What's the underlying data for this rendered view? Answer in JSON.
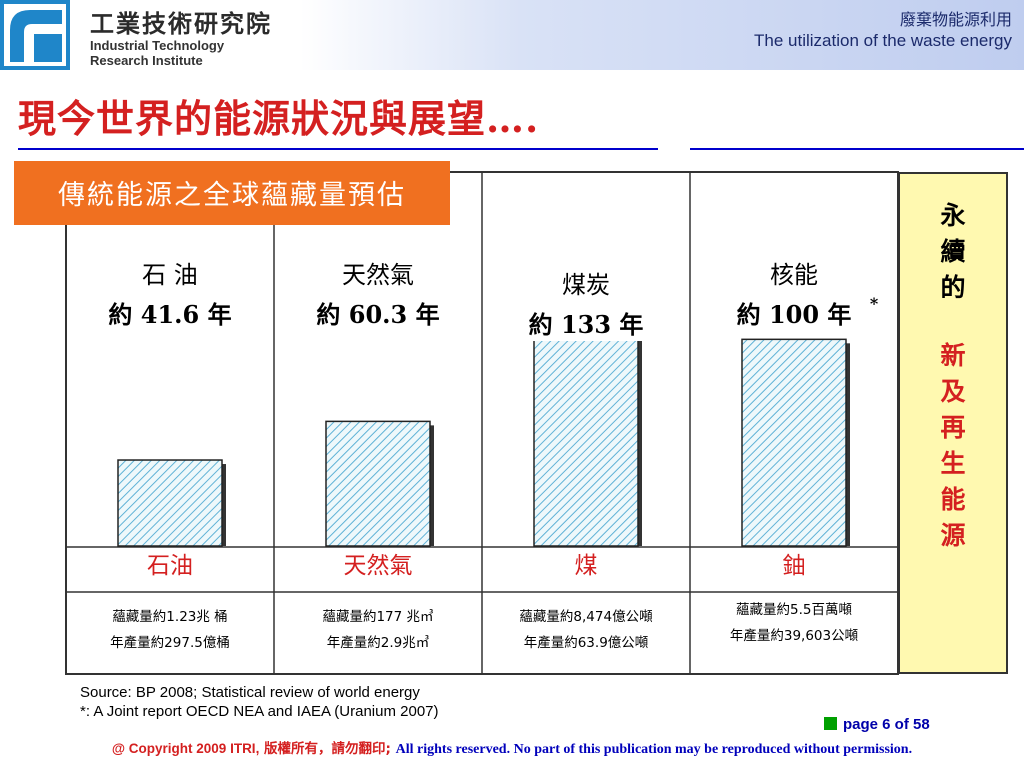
{
  "header": {
    "org_name_zh": "工業技術研究院",
    "org_name_en_line1": "Industrial Technology",
    "org_name_en_line2": "Research Institute",
    "topic_zh": "廢棄物能源利用",
    "topic_en": "The utilization of the waste energy"
  },
  "title": "現今世界的能源狀況與展望….",
  "chart_data": {
    "type": "bar",
    "title": "傳統能源之全球蘊藏量預估",
    "categories": [
      "石油",
      "天然氣",
      "煤",
      "鈾"
    ],
    "values": [
      41.6,
      60.3,
      133,
      100
    ],
    "unit": "年",
    "bar_labels": [
      {
        "name": "石 油",
        "value_text": "約 41.6 年",
        "note": ""
      },
      {
        "name": "天然氣",
        "value_text": "約 60.3 年",
        "note": ""
      },
      {
        "name": "煤炭",
        "value_text": "約 133 年",
        "note": ""
      },
      {
        "name": "核能",
        "value_text": "約 100 年",
        "note": "*"
      }
    ],
    "reserves": [
      {
        "reserve": "蘊藏量約1.23兆 桶",
        "production": "年產量約297.5億桶"
      },
      {
        "reserve": "蘊藏量約177 兆㎥",
        "production": "年產量約2.9兆㎥"
      },
      {
        "reserve": "蘊藏量約8,474億公噸",
        "production": "年產量約63.9億公噸"
      },
      {
        "reserve": "蘊藏量約5.5百萬噸",
        "production": "年產量約39,603公噸"
      }
    ],
    "ylim": [
      0,
      150
    ],
    "colors": {
      "bar_hatch": "#5fb2d6",
      "bar_bg": "#eef8fb",
      "label_name": "#d42020",
      "label_value": "#000000",
      "title_box": "#f07020",
      "side_box": "#fff9b0"
    }
  },
  "sidebar": {
    "line1": [
      "永",
      "續",
      "的"
    ],
    "line2": [
      "新",
      "及",
      "再",
      "生",
      "能",
      "源"
    ]
  },
  "source": {
    "line1": "Source: BP 2008; Statistical review of world energy",
    "line2": "*: A Joint report OECD NEA and IAEA (Uranium 2007)"
  },
  "page_indicator": "page 6 of 58",
  "footer": {
    "copyright": "@ Copyright 2009 ITRI,",
    "copyright_zh": "版權所有，請勿翻印;",
    "rights": "All rights reserved. No part of this publication may be reproduced without permission."
  }
}
